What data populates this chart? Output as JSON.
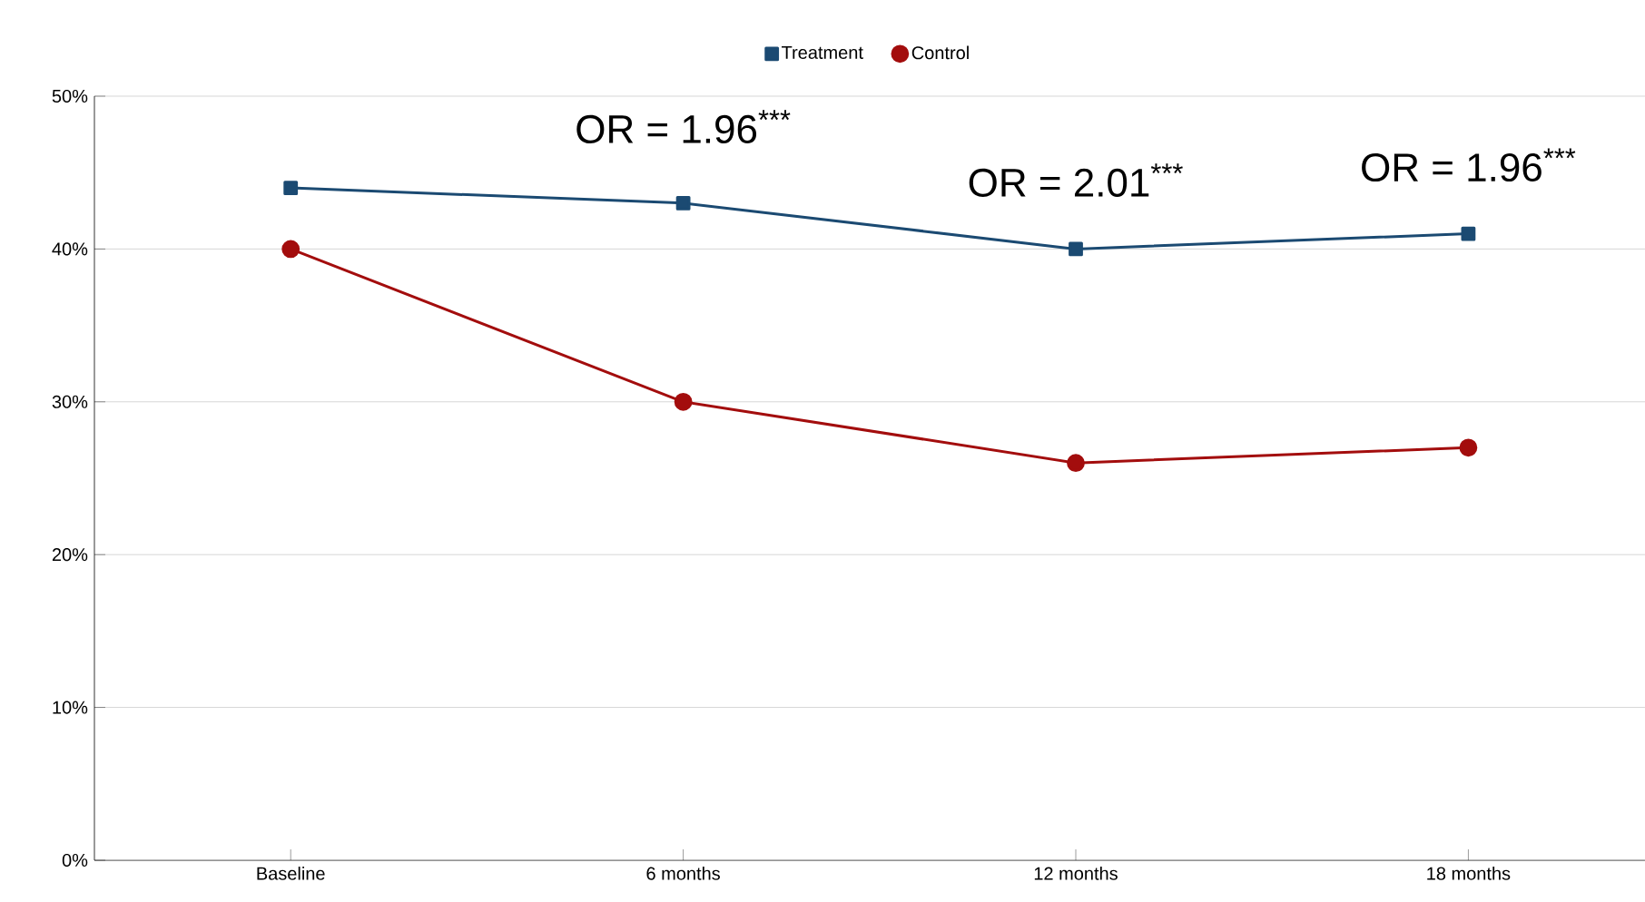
{
  "chart_data": {
    "type": "line",
    "categories": [
      "Baseline",
      "6 months",
      "12 months",
      "18 months"
    ],
    "series": [
      {
        "name": "Treatment",
        "color": "#1b4a72",
        "marker": "square",
        "values": [
          44,
          43,
          40,
          41
        ]
      },
      {
        "name": "Control",
        "color": "#a30d0d",
        "marker": "circle",
        "values": [
          40,
          30,
          26,
          27
        ]
      }
    ],
    "ylim": [
      0,
      50
    ],
    "yticks": [
      {
        "value": 0,
        "label": "0%"
      },
      {
        "value": 10,
        "label": "10%"
      },
      {
        "value": 20,
        "label": "20%"
      },
      {
        "value": 30,
        "label": "30%"
      },
      {
        "value": 40,
        "label": "40%"
      },
      {
        "value": 50,
        "label": "50%"
      }
    ],
    "grid": "y",
    "legend": "top",
    "line_style": "solid",
    "annotations": [
      "OR = 1.96$^{***}$",
      "OR = 2.01$^{***}$",
      "OR = 1.96$^{***}$"
    ]
  }
}
